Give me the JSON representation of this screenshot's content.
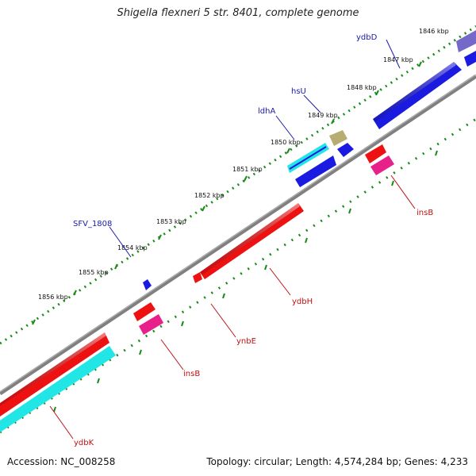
{
  "title": "Shigella flexneri 5 str. 8401, complete genome",
  "footer": {
    "accession": "Accession: NC_008258",
    "summary": "Topology: circular; Length: 4,574,284 bp; Genes: 4,233"
  },
  "colors": {
    "backbone": "#808080",
    "tick_dots": "#1a8a1a",
    "forward_label": "#1a1aa8",
    "reverse_label": "#c01010",
    "red": "#ee1111",
    "pink": "#e8208a",
    "blue": "#1a1ae0",
    "cyan": "#22e6e6",
    "khaki": "#b7ad72",
    "slate": "#7468c8"
  },
  "kbp_ticks": [
    "1846 kbp",
    "1847 kbp",
    "1848 kbp",
    "1849 kbp",
    "1850 kbp",
    "1851 kbp",
    "1852 kbp",
    "1853 kbp",
    "1854 kbp",
    "1855 kbp",
    "1856 kbp"
  ],
  "gene_labels": {
    "forward": [
      "ydbD",
      "hsU",
      "ldhA",
      "SFV_1808"
    ],
    "reverse": [
      "insB",
      "ydbH",
      "ynbE",
      "insB",
      "ydbK"
    ]
  }
}
